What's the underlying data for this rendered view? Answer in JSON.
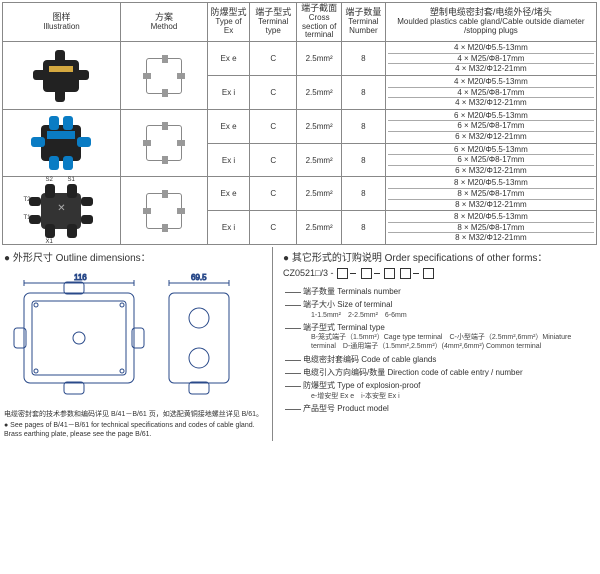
{
  "headers": {
    "illustration_cn": "图样",
    "illustration_en": "Illustration",
    "method_cn": "方案",
    "method_en": "Method",
    "typeex_cn": "防爆型式",
    "typeex_en": "Type of Ex",
    "terminal_type_cn": "端子型式",
    "terminal_type_en": "Terminal type",
    "cross_cn": "端子截面",
    "cross_en": "Cross section of terminal",
    "termnum_cn": "端子数量",
    "termnum_en": "Terminal Number",
    "gland_cn": "塑制电缆密封套/电缆外径/堵头",
    "gland_en": "Moulded plastics cable gland/Cable outside diameter /stopping plugs"
  },
  "rows": [
    {
      "ex": "Ex e",
      "ttype": "C",
      "cross": "2.5mm²",
      "num": "8",
      "glands": [
        "4 × M20/Φ5.5-13mm",
        "4 × M25/Φ8-17mm",
        "4 × M32/Φ12-21mm"
      ]
    },
    {
      "ex": "Ex i",
      "ttype": "C",
      "cross": "2.5mm²",
      "num": "8",
      "glands": [
        "4 × M20/Φ5.5-13mm",
        "4 × M25/Φ8-17mm",
        "4 × M32/Φ12-21mm"
      ]
    },
    {
      "ex": "Ex e",
      "ttype": "C",
      "cross": "2.5mm²",
      "num": "8",
      "glands": [
        "6 × M20/Φ5.5-13mm",
        "6 × M25/Φ8-17mm",
        "6 × M32/Φ12-21mm"
      ]
    },
    {
      "ex": "Ex i",
      "ttype": "C",
      "cross": "2.5mm²",
      "num": "8",
      "glands": [
        "6 × M20/Φ5.5-13mm",
        "6 × M25/Φ8-17mm",
        "6 × M32/Φ12-21mm"
      ]
    },
    {
      "ex": "Ex e",
      "ttype": "C",
      "cross": "2.5mm²",
      "num": "8",
      "glands": [
        "8 × M20/Φ5.5-13mm",
        "8 × M25/Φ8-17mm",
        "8 × M32/Φ12-21mm"
      ]
    },
    {
      "ex": "Ex i",
      "ttype": "C",
      "cross": "2.5mm²",
      "num": "8",
      "glands": [
        "8 × M20/Φ5.5-13mm",
        "8 × M25/Φ8-17mm",
        "8 × M32/Φ12-21mm"
      ]
    }
  ],
  "outline": {
    "title": "● 外形尺寸 Outline dimensions：",
    "dim_w": "116",
    "dim_h": "69.5",
    "note_cn": "电缆密封套的技术参数和编码详见 B/41－B/61 页，如选配黄铜接地螺丝详见 B/61。",
    "note_en": "● See pages of B/41－B/61 for technical specifications and codes of cable gland. Brass earthing plate, please see the page B/61."
  },
  "order": {
    "title": "● 其它形式的订购说明 Order specifications of other forms：",
    "code_prefix": "CZ0521□/3 -",
    "items": [
      {
        "cn": "端子数量 Terminals number",
        "sub": ""
      },
      {
        "cn": "端子大小 Size of terminal",
        "sub": "1-1.5mm²　2-2.5mm²　6-6mm"
      },
      {
        "cn": "端子型式 Terminal type",
        "sub": "B-笼式端子（1.5mm²）Cage type terminal　C-小型端子（2.5mm²,6mm²）Miniature terminal　D-通用端子（1.5mm²,2.5mm²）(4mm²,6mm²) Common terminal"
      },
      {
        "cn": "电缆密封套编码 Code of cable glands",
        "sub": ""
      },
      {
        "cn": "电缆引入方向编码/数量 Direction code of cable entry / number",
        "sub": ""
      },
      {
        "cn": "防爆型式 Type of explosion-proof",
        "sub": "e-增安型 Ex e　i-本安型 Ex i"
      },
      {
        "cn": "产品型号 Product model",
        "sub": ""
      }
    ]
  },
  "colors": {
    "border": "#888888",
    "text": "#333333",
    "blue": "#0a7cc4",
    "black": "#222222"
  }
}
